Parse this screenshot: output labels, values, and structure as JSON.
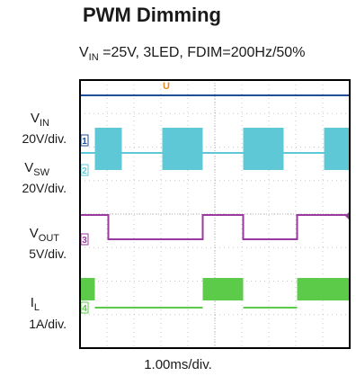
{
  "title": "PWM Dimming",
  "subtitle": {
    "v": "V",
    "sub": "IN",
    "rest": " =25V,  3LED, FDIM=200Hz/50%"
  },
  "channels": [
    {
      "name": "V",
      "sub": "IN",
      "scale": "20V/div.",
      "marker": "1",
      "color": "#1f4e9c"
    },
    {
      "name": "V",
      "sub": "SW",
      "scale": "20V/div.",
      "marker": "2",
      "color": "#5ec8d6"
    },
    {
      "name": "V",
      "sub": "OUT",
      "scale": "5V/div.",
      "marker": "3",
      "color": "#9b3a9e"
    },
    {
      "name": "I",
      "sub": "L",
      "scale": "1A/div.",
      "marker": "4",
      "color": "#5ccb4a"
    }
  ],
  "x_scale_label": "1.00ms/div.",
  "trigger_marker": "U",
  "colors": {
    "screen_bg": "#ffffff",
    "frame": "#000000",
    "grid": "#c8c8c8",
    "trigger": "#e8891c"
  },
  "chart_data": {
    "type": "line",
    "title": "PWM Dimming",
    "subtitle": "VIN =25V,  3LED, FDIM=200Hz/50%",
    "xlabel": "1.00ms/div.",
    "x_unit": "ms",
    "x_divisions": 10,
    "y_divisions": 8,
    "xlim": [
      -5,
      5
    ],
    "grid": true,
    "series": [
      {
        "name": "VIN",
        "scale": "20V/div.",
        "shape": "dc",
        "level": 25
      },
      {
        "name": "VSW",
        "scale": "20V/div.",
        "shape": "pwm_switching",
        "on_intervals_ms": [
          [
            -4.45,
            -3.45
          ],
          [
            -1.95,
            -0.45
          ],
          [
            1.05,
            2.55
          ],
          [
            4.05,
            5
          ]
        ],
        "off_intervals_ms": [
          [
            -5,
            -4.45
          ],
          [
            -3.45,
            -1.95
          ],
          [
            -0.45,
            1.05
          ],
          [
            2.55,
            4.05
          ]
        ]
      },
      {
        "name": "VOUT",
        "scale": "5V/div.",
        "shape": "pwm",
        "high_intervals_ms": [
          [
            -5,
            -3.95
          ],
          [
            -0.45,
            1.05
          ],
          [
            3.05,
            5
          ]
        ],
        "low_intervals_ms": [
          [
            -3.95,
            -0.45
          ],
          [
            1.05,
            3.05
          ]
        ]
      },
      {
        "name": "IL",
        "scale": "1A/div.",
        "shape": "pwm_ripple",
        "on_intervals_ms": [
          [
            -5,
            -4.45
          ],
          [
            -0.45,
            1.05
          ],
          [
            3.05,
            5
          ]
        ],
        "off_intervals_ms": [
          [
            -4.45,
            -0.45
          ],
          [
            1.05,
            3.05
          ]
        ]
      }
    ],
    "trigger_position_ms": -1.8
  }
}
